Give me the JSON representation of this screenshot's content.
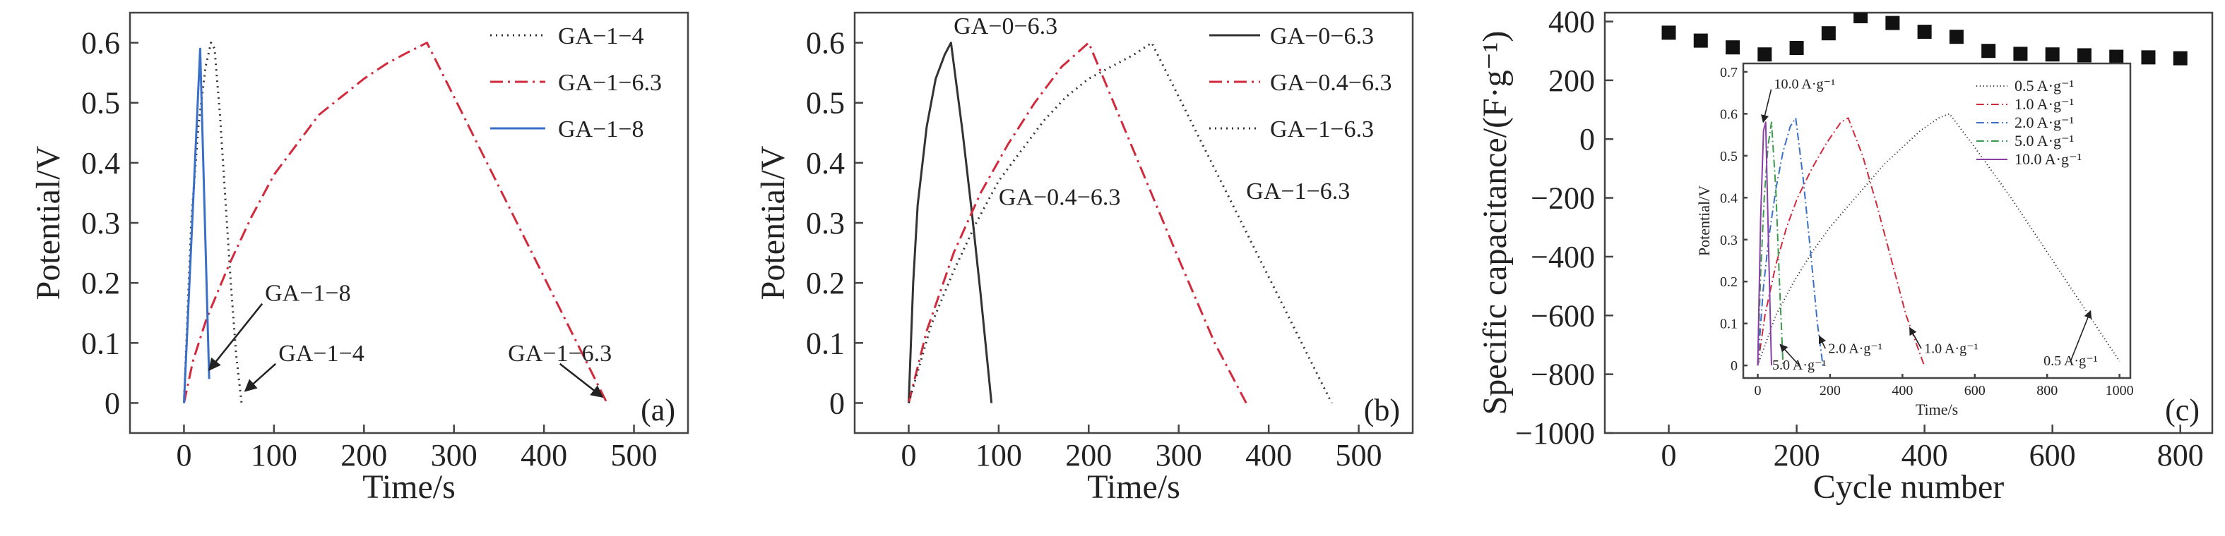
{
  "chart_data": [
    {
      "type": "line",
      "panel_label": "(a)",
      "xlabel": "Time/s",
      "ylabel": "Potential/V",
      "xlim": [
        -60,
        560
      ],
      "ylim": [
        -0.05,
        0.65
      ],
      "xticks": [
        0,
        100,
        200,
        300,
        400,
        500
      ],
      "yticks": [
        0,
        0.1,
        0.2,
        0.3,
        0.4,
        0.5,
        0.6
      ],
      "legend_position": "top-right",
      "series": [
        {
          "name": "GA−1−4",
          "style": "dotted",
          "color": "#333333",
          "x": [
            0,
            8,
            16,
            24,
            30,
            34,
            40,
            46,
            52,
            58,
            64
          ],
          "y": [
            0,
            0.3,
            0.46,
            0.56,
            0.6,
            0.59,
            0.48,
            0.34,
            0.2,
            0.08,
            0
          ]
        },
        {
          "name": "GA−1−6.3",
          "style": "dashdot",
          "color": "#d22a3c",
          "x": [
            0,
            10,
            25,
            50,
            75,
            100,
            125,
            150,
            175,
            200,
            225,
            250,
            270,
            320,
            370,
            420,
            470
          ],
          "y": [
            0,
            0.07,
            0.14,
            0.23,
            0.31,
            0.38,
            0.43,
            0.48,
            0.51,
            0.54,
            0.565,
            0.585,
            0.6,
            0.45,
            0.3,
            0.15,
            0
          ]
        },
        {
          "name": "GA−1−8",
          "style": "solid",
          "color": "#3a6fc8",
          "x": [
            0,
            18,
            28
          ],
          "y": [
            0,
            0.59,
            0.04
          ]
        }
      ],
      "annotations": [
        {
          "text": "GA−1−8",
          "x": 90,
          "y": 0.17,
          "arrow_to": [
            28,
            0.055
          ]
        },
        {
          "text": "GA−1−4",
          "x": 105,
          "y": 0.07,
          "arrow_to": [
            68,
            0.02
          ]
        },
        {
          "text": "GA−1−6.3",
          "x": 360,
          "y": 0.07,
          "arrow_to": [
            465,
            0.01
          ]
        }
      ]
    },
    {
      "type": "line",
      "panel_label": "(b)",
      "xlabel": "Time/s",
      "ylabel": "Potential/V",
      "xlim": [
        -60,
        560
      ],
      "ylim": [
        -0.05,
        0.65
      ],
      "xticks": [
        0,
        100,
        200,
        300,
        400,
        500
      ],
      "yticks": [
        0,
        0.1,
        0.2,
        0.3,
        0.4,
        0.5,
        0.6
      ],
      "legend_position": "top-right",
      "series": [
        {
          "name": "GA−0−6.3",
          "style": "solid",
          "color": "#333333",
          "x": [
            0,
            5,
            10,
            20,
            30,
            40,
            47,
            60,
            70,
            80,
            92
          ],
          "y": [
            0,
            0.2,
            0.33,
            0.46,
            0.54,
            0.58,
            0.6,
            0.45,
            0.32,
            0.18,
            0
          ]
        },
        {
          "name": "GA−0.4−6.3",
          "style": "dashdot",
          "color": "#d22a3c",
          "x": [
            0,
            20,
            50,
            80,
            110,
            140,
            170,
            200,
            250,
            300,
            340,
            375
          ],
          "y": [
            0,
            0.12,
            0.25,
            0.35,
            0.43,
            0.5,
            0.56,
            0.6,
            0.42,
            0.24,
            0.1,
            0
          ]
        },
        {
          "name": "GA−1−6.3",
          "style": "dotted",
          "color": "#333333",
          "x": [
            0,
            25,
            50,
            75,
            100,
            125,
            150,
            175,
            200,
            225,
            250,
            270,
            320,
            370,
            420,
            470
          ],
          "y": [
            0,
            0.13,
            0.22,
            0.3,
            0.37,
            0.42,
            0.47,
            0.51,
            0.54,
            0.56,
            0.58,
            0.6,
            0.45,
            0.3,
            0.15,
            0
          ]
        }
      ],
      "annotations": [
        {
          "text": "GA−0−6.3",
          "x": 50,
          "y": 0.615
        },
        {
          "text": "GA−0.4−6.3",
          "x": 100,
          "y": 0.33
        },
        {
          "text": "GA−1−6.3",
          "x": 375,
          "y": 0.34
        }
      ]
    },
    {
      "type": "scatter",
      "panel_label": "(c)",
      "xlabel": "Cycle number",
      "ylabel": "Specific capacitance/(F·g⁻¹)",
      "xlim": [
        -100,
        850
      ],
      "ylim": [
        -1000,
        430
      ],
      "xticks": [
        0,
        200,
        400,
        600,
        800
      ],
      "yticks": [
        -1000,
        -800,
        -600,
        -400,
        -200,
        0,
        200,
        400
      ],
      "series": [
        {
          "name": "",
          "marker": "square",
          "color": "#111111",
          "x": [
            0,
            50,
            100,
            150,
            200,
            250,
            300,
            350,
            400,
            450,
            500,
            550,
            600,
            650,
            700,
            750,
            800
          ],
          "y": [
            362,
            335,
            312,
            288,
            310,
            360,
            418,
            395,
            365,
            348,
            300,
            290,
            288,
            285,
            280,
            278,
            275
          ]
        }
      ],
      "inset": {
        "type": "line",
        "xlabel": "Time/s",
        "ylabel": "Potential/V",
        "xlim": [
          -40,
          1030
        ],
        "ylim": [
          -0.03,
          0.72
        ],
        "xticks": [
          0,
          200,
          400,
          600,
          800,
          1000
        ],
        "yticks": [
          0,
          0.1,
          0.2,
          0.3,
          0.4,
          0.5,
          0.6,
          0.7
        ],
        "legend_position": "top-right",
        "series": [
          {
            "name": "0.5 A·g⁻¹",
            "style": "dotted",
            "color": "#333333",
            "x": [
              0,
              50,
              100,
              150,
              200,
              250,
              300,
              350,
              400,
              450,
              500,
              530,
              600,
              700,
              800,
              900,
              1000
            ],
            "y": [
              0,
              0.12,
              0.2,
              0.27,
              0.33,
              0.38,
              0.43,
              0.48,
              0.52,
              0.56,
              0.59,
              0.6,
              0.52,
              0.4,
              0.27,
              0.14,
              0.01
            ]
          },
          {
            "name": "1.0 A·g⁻¹",
            "style": "dashdot",
            "color": "#d22a3c",
            "x": [
              0,
              20,
              50,
              80,
              110,
              150,
              190,
              230,
              250,
              290,
              330,
              370,
              410,
              460
            ],
            "y": [
              0,
              0.12,
              0.24,
              0.33,
              0.4,
              0.47,
              0.53,
              0.58,
              0.59,
              0.5,
              0.38,
              0.25,
              0.12,
              0
            ]
          },
          {
            "name": "2.0 A·g⁻¹",
            "style": "dashdot",
            "color": "#3a6fc8",
            "x": [
              0,
              15,
              30,
              50,
              70,
              90,
              105,
              125,
              145,
              165,
              180
            ],
            "y": [
              0,
              0.18,
              0.3,
              0.42,
              0.51,
              0.57,
              0.59,
              0.45,
              0.28,
              0.1,
              0
            ]
          },
          {
            "name": "5.0 A·g⁻¹",
            "style": "dashdot",
            "color": "#3a9a4c",
            "x": [
              0,
              8,
              18,
              28,
              38,
              50,
              60,
              70
            ],
            "y": [
              0,
              0.22,
              0.4,
              0.52,
              0.58,
              0.42,
              0.2,
              0
            ]
          },
          {
            "name": "10.0 A·g⁻¹",
            "style": "solid",
            "color": "#8a3fa8",
            "x": [
              0,
              8,
              16,
              22,
              30,
              38
            ],
            "y": [
              0,
              0.35,
              0.56,
              0.58,
              0.28,
              0
            ]
          }
        ],
        "annotations": [
          {
            "text": "10.0 A·g⁻¹",
            "x": 45,
            "y": 0.66,
            "arrow_to": [
              15,
              0.58
            ]
          },
          {
            "text": "5.0 A·g⁻¹",
            "x": 40,
            "y": -0.01,
            "arrow_to": [
              62,
              0.05
            ]
          },
          {
            "text": "2.0 A·g⁻¹",
            "x": 195,
            "y": 0.03,
            "arrow_to": [
              170,
              0.07
            ]
          },
          {
            "text": "1.0 A·g⁻¹",
            "x": 460,
            "y": 0.03,
            "arrow_to": [
              420,
              0.09
            ]
          },
          {
            "text": "0.5 A·g⁻¹",
            "x": 790,
            "y": 0.0,
            "arrow_to": [
              920,
              0.13
            ]
          }
        ]
      }
    }
  ]
}
